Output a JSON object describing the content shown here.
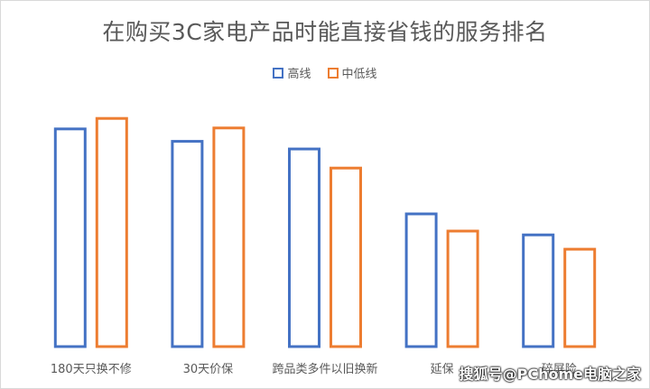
{
  "chart_data": {
    "type": "bar",
    "title": "在购买3C家电产品时能直接省钱的服务排名",
    "categories": [
      "180天只换不修",
      "30天价保",
      "跨品类多件以旧换新",
      "延保",
      "碎屏险"
    ],
    "series": [
      {
        "name": "高线",
        "color": "#4472c4",
        "values": [
          228,
          215,
          207,
          139,
          117
        ]
      },
      {
        "name": "中低线",
        "color": "#ed7d31",
        "values": [
          239,
          229,
          187,
          121,
          102
        ]
      }
    ],
    "ylim": [
      0,
      260
    ],
    "grid": false,
    "legend": "top-center",
    "xlabel": "",
    "ylabel": ""
  },
  "watermark": "搜狐号@PChome电脑之家"
}
